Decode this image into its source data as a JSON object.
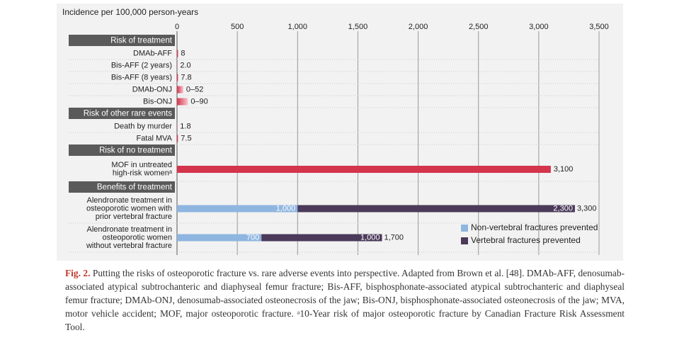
{
  "chart_data": {
    "type": "bar",
    "orientation": "horizontal",
    "x_axis_title": "Incidence per 100,000 person-years",
    "xlim": [
      0,
      3500
    ],
    "xticks": [
      0,
      500,
      {
        "value": 1000,
        "label": "1,000"
      },
      {
        "value": 1500,
        "label": "1,500"
      },
      {
        "value": 2000,
        "label": "2,000"
      },
      {
        "value": 2500,
        "label": "2,500"
      },
      {
        "value": 3000,
        "label": "3,000"
      },
      {
        "value": 3500,
        "label": "3,500"
      }
    ],
    "grid": true,
    "legend": "bottom-right",
    "groups": [
      {
        "name": "Risk of treatment",
        "color": "#d4344c",
        "categories": [
          [
            "DMAb-AFF"
          ],
          [
            "Bis-AFF (2 years)"
          ],
          [
            "Bis-AFF (8 years)"
          ],
          [
            "DMAb-ONJ"
          ],
          [
            "Bis-ONJ"
          ]
        ],
        "values": [
          8,
          2.0,
          7.8,
          [
            0,
            52
          ],
          [
            0,
            90
          ]
        ],
        "value_labels": [
          "8",
          "2.0",
          "7.8",
          "0–52",
          "0–90"
        ]
      },
      {
        "name": "Risk of other rare events",
        "color": "#d4344c",
        "categories": [
          [
            "Death by murder"
          ],
          [
            "Fatal MVA"
          ]
        ],
        "values": [
          1.8,
          7.5
        ],
        "value_labels": [
          "1.8",
          "7.5"
        ]
      },
      {
        "name": "Risk of no treatment",
        "color": "#d4344c",
        "categories": [
          [
            "MOF in untreated",
            "high-risk womenᵃ"
          ]
        ],
        "values": [
          3100
        ],
        "value_labels": [
          "3,100"
        ]
      },
      {
        "name": "Benefits of treatment",
        "categories": [
          [
            "Alendronate treatment in",
            "osteoporotic women with",
            "prior vertebral fracture"
          ],
          [
            "Alendronate treatment in",
            "osteoporotic women",
            "without vertebral fracture"
          ]
        ],
        "series": [
          {
            "name": "Non-vertebral fractures prevented",
            "color": "#8fb6e0",
            "values": [
              1000,
              700
            ],
            "value_labels": [
              "1,000",
              "700"
            ]
          },
          {
            "name": "Vertebral fractures prevented",
            "color": "#4b3a5a",
            "values": [
              2300,
              1000
            ],
            "value_labels": [
              "2,300",
              "1,000"
            ]
          }
        ],
        "totals": [
          3300,
          1700
        ],
        "total_labels": [
          "3,300",
          "1,700"
        ]
      }
    ]
  },
  "caption": {
    "label": "Fig. 2.",
    "text": "Putting the risks of osteoporotic fracture vs. rare adverse events into perspective. Adapted from Brown et al. [48]. DMAb-AFF, denosumab-associated atypical subtrochanteric and diaphyseal femur fracture; Bis-AFF, bisphosphonate-associated atypical subtrochanteric and diaphyseal femur fracture; DMAb-ONJ, denosumab-associated osteonecrosis of the jaw; Bis-ONJ, bisphosphonate-associated osteonecrosis of the jaw; MVA, motor vehicle accident; MOF, major osteoporotic fracture. ᵃ10-Year risk of major osteoporotic fracture by Canadian Fracture Risk Assessment Tool."
  }
}
